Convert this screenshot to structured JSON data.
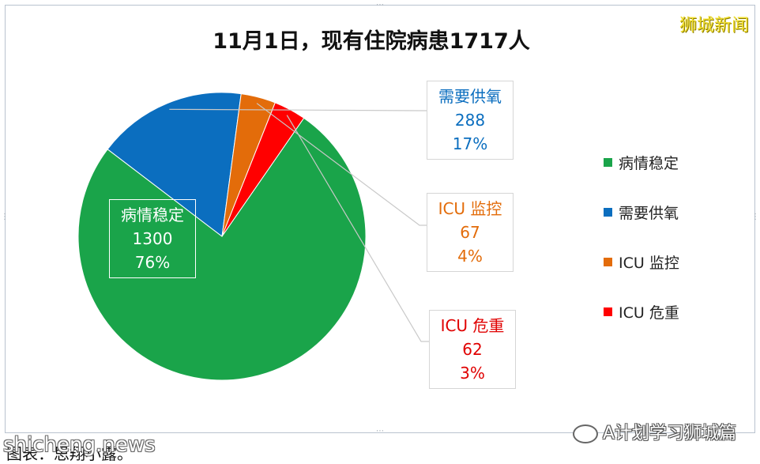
{
  "watermarks": {
    "top_right": "狮城新闻",
    "bottom_left": "shicheng.news",
    "bottom_right": "A计划学习狮城篇"
  },
  "source_note": "图表：思翔小露。",
  "chart_data": {
    "type": "pie",
    "title": "11月1日，现有住院病患1717人",
    "slices": [
      {
        "label": "病情稳定",
        "value": 1300,
        "percent": "76%",
        "color": "#1aa44a"
      },
      {
        "label": "需要供氧",
        "value": 288,
        "percent": "17%",
        "color": "#0b6ebf"
      },
      {
        "label": "ICU 监控",
        "value": 67,
        "percent": "4%",
        "color": "#e36c0a"
      },
      {
        "label": "ICU 危重",
        "value": 62,
        "percent": "3%",
        "color": "#ff0000"
      }
    ],
    "legend": {
      "placement": "right",
      "items": [
        {
          "label": "病情稳定",
          "color": "#1aa44a"
        },
        {
          "label": "需要供氧",
          "color": "#0b6ebf"
        },
        {
          "label": "ICU 监控",
          "color": "#e36c0a"
        },
        {
          "label": "ICU 危重",
          "color": "#ff0000"
        }
      ]
    },
    "label_colors": [
      "#ffffff",
      "#0b6ebf",
      "#e36c0a",
      "#e00000"
    ]
  }
}
